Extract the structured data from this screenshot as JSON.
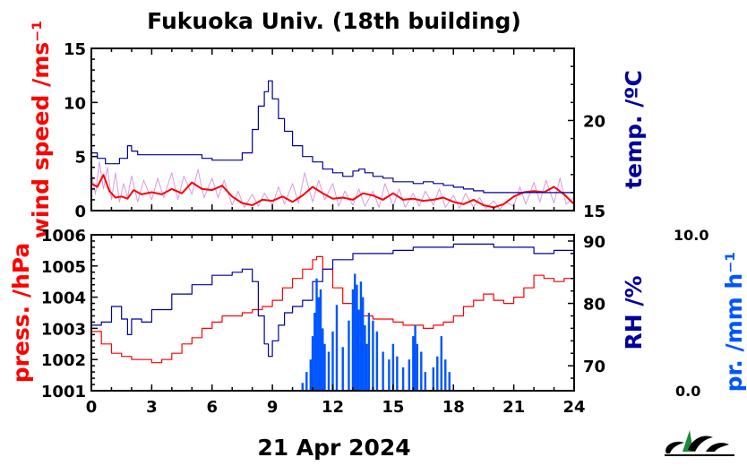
{
  "title": "Fukuoka Univ. (18th building)",
  "x_label": "21 Apr 2024",
  "colors": {
    "wind": "#ff0000",
    "wind_raw": "#cc77dd",
    "temp": "#000099",
    "press": "#ff0000",
    "rh": "#000099",
    "precip": "#0055ff"
  },
  "chart_data": [
    {
      "type": "line",
      "panel": "top",
      "x_axis": {
        "label": "",
        "range": [
          0,
          24
        ],
        "ticks": [
          0,
          3,
          6,
          9,
          12,
          15,
          18,
          21,
          24
        ]
      },
      "y_left": {
        "label": "wind speed /ms⁻¹",
        "range": [
          0,
          15
        ],
        "ticks": [
          0,
          5,
          10,
          15
        ]
      },
      "y_right": {
        "label": "temp. /ºC",
        "range": [
          15,
          24
        ],
        "ticks": [
          15,
          20
        ]
      },
      "series": [
        {
          "name": "",
          "axis": "left",
          "style": "wind_raw",
          "x": [
            0,
            0.2,
            0.4,
            0.6,
            0.8,
            1,
            1.2,
            1.4,
            1.6,
            1.8,
            2,
            2.3,
            2.6,
            3,
            3.3,
            3.6,
            4,
            4.3,
            4.6,
            5,
            5.3,
            5.6,
            6,
            6.3,
            6.6,
            7,
            7.3,
            7.6,
            8,
            8.3,
            8.6,
            9,
            9.3,
            9.6,
            10,
            10.3,
            10.6,
            11,
            11.3,
            11.6,
            12,
            12.3,
            12.6,
            13,
            13.3,
            13.6,
            14,
            14.3,
            14.6,
            15,
            15.3,
            15.6,
            16,
            16.3,
            16.6,
            17,
            17.3,
            17.6,
            18,
            18.3,
            18.6,
            19,
            19.3,
            19.6,
            20,
            20.3,
            20.6,
            21,
            21.3,
            21.6,
            22,
            22.3,
            22.6,
            23,
            23.3,
            23.6,
            24
          ],
          "y": [
            3.5,
            1.5,
            4.5,
            2.0,
            4.0,
            1.0,
            3.5,
            0.8,
            2.5,
            1.2,
            3.2,
            0.8,
            2.8,
            1.0,
            3.0,
            1.2,
            3.5,
            1.0,
            3.2,
            1.5,
            3.8,
            1.2,
            3.0,
            1.2,
            2.8,
            0.5,
            1.8,
            0.3,
            1.5,
            0.4,
            1.6,
            0.5,
            2.2,
            0.6,
            2.5,
            0.7,
            3.5,
            0.8,
            2.8,
            1.0,
            2.5,
            0.4,
            1.8,
            0.5,
            2.0,
            0.4,
            1.8,
            0.3,
            2.5,
            0.4,
            2.0,
            0.3,
            1.6,
            0.4,
            1.8,
            0.5,
            2.0,
            0.3,
            1.4,
            0.2,
            1.6,
            0.3,
            1.2,
            0.2,
            0.9,
            0.1,
            0.8,
            0.4,
            2.2,
            0.6,
            2.6,
            0.8,
            2.8,
            0.7,
            3.0,
            0.6,
            1.2
          ]
        },
        {
          "name": "",
          "axis": "left",
          "style": "wind",
          "x": [
            0,
            0.3,
            0.6,
            0.9,
            1.2,
            1.5,
            1.8,
            2.1,
            2.5,
            3,
            3.5,
            4,
            4.5,
            5,
            5.5,
            6,
            6.5,
            7,
            7.5,
            8,
            8.5,
            9,
            9.5,
            10,
            10.5,
            11,
            11.5,
            12,
            12.5,
            13,
            13.5,
            14,
            14.5,
            15,
            15.5,
            16,
            16.5,
            17,
            17.5,
            18,
            18.5,
            19,
            19.5,
            20,
            20.5,
            21,
            21.5,
            22,
            22.5,
            23,
            23.5,
            24
          ],
          "y": [
            2.5,
            2.2,
            3.3,
            1.8,
            1.2,
            1.3,
            1.1,
            1.9,
            1.5,
            1.7,
            1.5,
            2.0,
            1.6,
            2.6,
            2.0,
            1.9,
            2.3,
            1.3,
            0.7,
            0.5,
            1.0,
            0.9,
            1.3,
            0.8,
            1.4,
            2.2,
            1.6,
            1.1,
            1.2,
            1.0,
            1.6,
            1.4,
            1.0,
            1.6,
            1.0,
            1.1,
            0.9,
            1.0,
            1.2,
            0.8,
            0.6,
            1.0,
            0.5,
            0.3,
            0.6,
            1.3,
            1.7,
            1.8,
            1.7,
            2.2,
            1.5,
            0.6
          ]
        },
        {
          "name": "",
          "axis": "right",
          "style": "temp",
          "x": [
            0,
            0.3,
            0.7,
            1.0,
            1.4,
            1.8,
            2.0,
            2.3,
            3,
            4,
            5,
            5.5,
            6,
            6.5,
            7,
            7.5,
            8,
            8.3,
            8.6,
            8.8,
            9,
            9.3,
            9.6,
            10,
            10.5,
            11,
            11.5,
            12,
            12.5,
            13,
            13.3,
            13.6,
            14,
            14.5,
            15,
            15.5,
            16,
            16.5,
            17,
            17.5,
            18,
            18.5,
            19,
            19.5,
            20,
            21,
            22,
            23,
            24
          ],
          "y": [
            18.2,
            17.9,
            17.6,
            17.6,
            17.9,
            18.6,
            18.3,
            18.1,
            18.1,
            18.1,
            18.1,
            17.9,
            17.8,
            17.8,
            17.8,
            18.2,
            19.5,
            20.8,
            21.6,
            22.2,
            21.2,
            20.1,
            19.4,
            18.6,
            18.0,
            17.7,
            17.3,
            17.1,
            16.9,
            17.2,
            17.3,
            17.1,
            16.9,
            16.8,
            16.6,
            16.6,
            16.5,
            16.6,
            16.5,
            16.4,
            16.3,
            16.2,
            16.1,
            16.0,
            16.0,
            16.0,
            16.0,
            16.0,
            16.0
          ]
        }
      ]
    },
    {
      "type": "line",
      "panel": "bottom",
      "x_axis": {
        "label": "21 Apr 2024",
        "range": [
          0,
          24
        ],
        "ticks": [
          0,
          3,
          6,
          9,
          12,
          15,
          18,
          21,
          24
        ]
      },
      "y_left": {
        "label": "press. /hPa",
        "range": [
          1001,
          1006
        ],
        "ticks": [
          1001,
          1002,
          1003,
          1004,
          1005,
          1006
        ]
      },
      "y_right": {
        "label": "RH /%",
        "range": [
          66,
          91
        ],
        "ticks": [
          70,
          80,
          90
        ]
      },
      "y_right2": {
        "label": "pr. /mm h⁻¹",
        "range": [
          0,
          10
        ],
        "ticks": [
          "0.0",
          "10.0"
        ]
      },
      "series": [
        {
          "name": "",
          "axis": "left",
          "style": "press",
          "x": [
            0,
            0.5,
            1,
            1.5,
            2,
            2.5,
            3,
            3.5,
            4,
            4.5,
            5,
            5.5,
            6,
            6.5,
            7,
            7.5,
            8,
            8.5,
            9,
            9.5,
            10,
            10.5,
            11,
            11.2,
            11.5,
            12,
            12.5,
            13,
            13.5,
            14,
            14.5,
            15,
            15.5,
            16,
            16.5,
            17,
            17.5,
            18,
            18.5,
            19,
            19.5,
            20,
            20.5,
            21,
            21.5,
            22,
            22.5,
            23,
            23.5,
            24
          ],
          "y": [
            1002.9,
            1002.5,
            1002.2,
            1002.1,
            1002.0,
            1002.0,
            1001.9,
            1002.0,
            1002.2,
            1002.5,
            1002.7,
            1003.0,
            1003.2,
            1003.4,
            1003.4,
            1003.5,
            1003.6,
            1003.7,
            1003.9,
            1004.3,
            1004.6,
            1004.9,
            1005.2,
            1005.3,
            1004.9,
            1004.3,
            1003.8,
            1003.5,
            1003.4,
            1003.3,
            1003.3,
            1003.2,
            1003.1,
            1003.1,
            1003.0,
            1003.1,
            1003.2,
            1003.4,
            1003.7,
            1003.9,
            1004.1,
            1003.9,
            1003.8,
            1004.0,
            1004.3,
            1004.7,
            1004.6,
            1004.5,
            1004.6,
            1004.5
          ]
        },
        {
          "name": "",
          "axis": "right",
          "style": "rh",
          "x": [
            0,
            0.5,
            1,
            1.5,
            1.8,
            2,
            2.5,
            3,
            4,
            5,
            6,
            7,
            7.5,
            8,
            8.3,
            8.6,
            8.8,
            9,
            9.3,
            9.6,
            10,
            10.5,
            11,
            11.5,
            12,
            13,
            14,
            15,
            16,
            17,
            18,
            19,
            20,
            21,
            22,
            23,
            24
          ],
          "y": [
            76.5,
            77.0,
            79.5,
            77.5,
            75.0,
            77.5,
            77.0,
            79.0,
            81.5,
            83.0,
            84.5,
            85.0,
            85.5,
            83.5,
            78.0,
            73.5,
            71.5,
            74.0,
            76.5,
            78.5,
            79.5,
            80.5,
            83.5,
            85.5,
            87.0,
            88.0,
            88.0,
            88.5,
            89.0,
            89.0,
            89.5,
            89.5,
            89.0,
            89.0,
            88.0,
            88.5,
            89.0
          ]
        },
        {
          "name": "",
          "axis": "right2",
          "style": "precip",
          "type": "bar",
          "x": [
            10.5,
            10.7,
            10.9,
            11.0,
            11.1,
            11.2,
            11.3,
            11.4,
            11.5,
            11.6,
            11.8,
            12.0,
            12.2,
            12.5,
            12.8,
            13.0,
            13.1,
            13.2,
            13.3,
            13.4,
            13.5,
            13.6,
            13.7,
            13.8,
            14.0,
            14.2,
            14.5,
            14.8,
            15.0,
            15.2,
            15.5,
            15.8,
            16.0,
            16.1,
            16.2,
            16.4,
            16.6,
            17.0,
            17.2,
            17.4,
            17.6,
            17.8
          ],
          "y": [
            0.5,
            1.2,
            2.0,
            3.5,
            5.0,
            7.2,
            6.0,
            6.5,
            4.0,
            3.0,
            2.5,
            3.8,
            5.5,
            2.8,
            4.5,
            6.5,
            7.5,
            6.8,
            5.2,
            7.0,
            6.0,
            4.2,
            3.0,
            5.0,
            4.5,
            3.8,
            2.5,
            2.0,
            3.0,
            2.2,
            1.5,
            2.0,
            3.5,
            4.2,
            3.0,
            2.5,
            1.2,
            1.5,
            2.2,
            3.5,
            2.0,
            1.2
          ]
        }
      ]
    }
  ]
}
